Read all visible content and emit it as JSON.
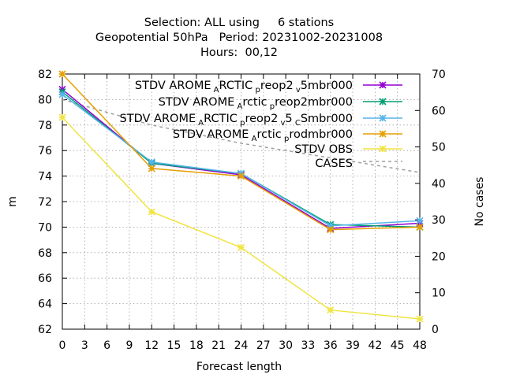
{
  "chart_data": {
    "type": "line",
    "title_lines": [
      "Selection: ALL using     6 stations",
      "Geopotential 50hPa   Period: 20231002-20231008",
      "Hours:  00,12"
    ],
    "xlabel": "Forecast length",
    "ylabel": "m",
    "y2label": "No cases",
    "xlim": [
      0,
      48
    ],
    "xticks": [
      0,
      3,
      6,
      9,
      12,
      15,
      18,
      21,
      24,
      27,
      30,
      33,
      36,
      39,
      42,
      45,
      48
    ],
    "ylim": [
      62,
      82
    ],
    "yticks": [
      62,
      64,
      66,
      68,
      70,
      72,
      74,
      76,
      78,
      80,
      82
    ],
    "y2lim": [
      0,
      70
    ],
    "y2ticks": [
      0,
      10,
      20,
      30,
      40,
      50,
      60,
      70
    ],
    "grid": true,
    "legend_position": "top-right",
    "series": [
      {
        "name_parts": [
          [
            "STDV AROME",
            false
          ],
          [
            "A",
            true
          ],
          [
            "RCTIC",
            false
          ],
          [
            "p",
            true
          ],
          [
            "reop2",
            false
          ],
          [
            "v",
            true
          ],
          [
            "5mbr000",
            false
          ]
        ],
        "color": "#9400d3",
        "marker": "x",
        "x": [
          0,
          12,
          24,
          36,
          48
        ],
        "values": [
          80.8,
          75.0,
          74.1,
          69.9,
          70.3
        ]
      },
      {
        "name_parts": [
          [
            "STDV AROME",
            false
          ],
          [
            "A",
            true
          ],
          [
            "rctic",
            false
          ],
          [
            "p",
            true
          ],
          [
            "reop2mbr000",
            false
          ]
        ],
        "color": "#009e73",
        "marker": "x",
        "x": [
          0,
          12,
          24,
          36,
          48
        ],
        "values": [
          80.6,
          75.0,
          74.2,
          70.2,
          70.0
        ]
      },
      {
        "name_parts": [
          [
            "STDV AROME",
            false
          ],
          [
            "A",
            true
          ],
          [
            "RCTIC",
            false
          ],
          [
            "p",
            true
          ],
          [
            "reop2",
            false
          ],
          [
            "v",
            true
          ],
          [
            "5",
            false
          ],
          [
            "C",
            true
          ],
          [
            "Smbr000",
            false
          ]
        ],
        "color": "#56b4e9",
        "marker": "x",
        "x": [
          0,
          12,
          24,
          36,
          48
        ],
        "values": [
          80.4,
          75.1,
          74.2,
          70.1,
          70.5
        ]
      },
      {
        "name_parts": [
          [
            "STDV AROME",
            false
          ],
          [
            "A",
            true
          ],
          [
            "rctic",
            false
          ],
          [
            "p",
            true
          ],
          [
            "rodmbr000",
            false
          ]
        ],
        "color": "#e69f00",
        "marker": "x",
        "x": [
          0,
          12,
          24,
          36,
          48
        ],
        "values": [
          82.0,
          74.6,
          74.0,
          69.8,
          70.0
        ]
      },
      {
        "name_parts": [
          [
            "STDV OBS",
            false
          ]
        ],
        "color": "#f0e442",
        "marker": "x",
        "x": [
          0,
          12,
          24,
          36,
          48
        ],
        "values": [
          78.6,
          71.2,
          68.4,
          63.5,
          62.8
        ]
      }
    ],
    "cases": {
      "name": "CASES",
      "color": "#a0a0a0",
      "axis": "y2",
      "x": [
        0,
        12,
        24,
        36,
        48
      ],
      "values": [
        63,
        56,
        51,
        47,
        43
      ]
    }
  }
}
